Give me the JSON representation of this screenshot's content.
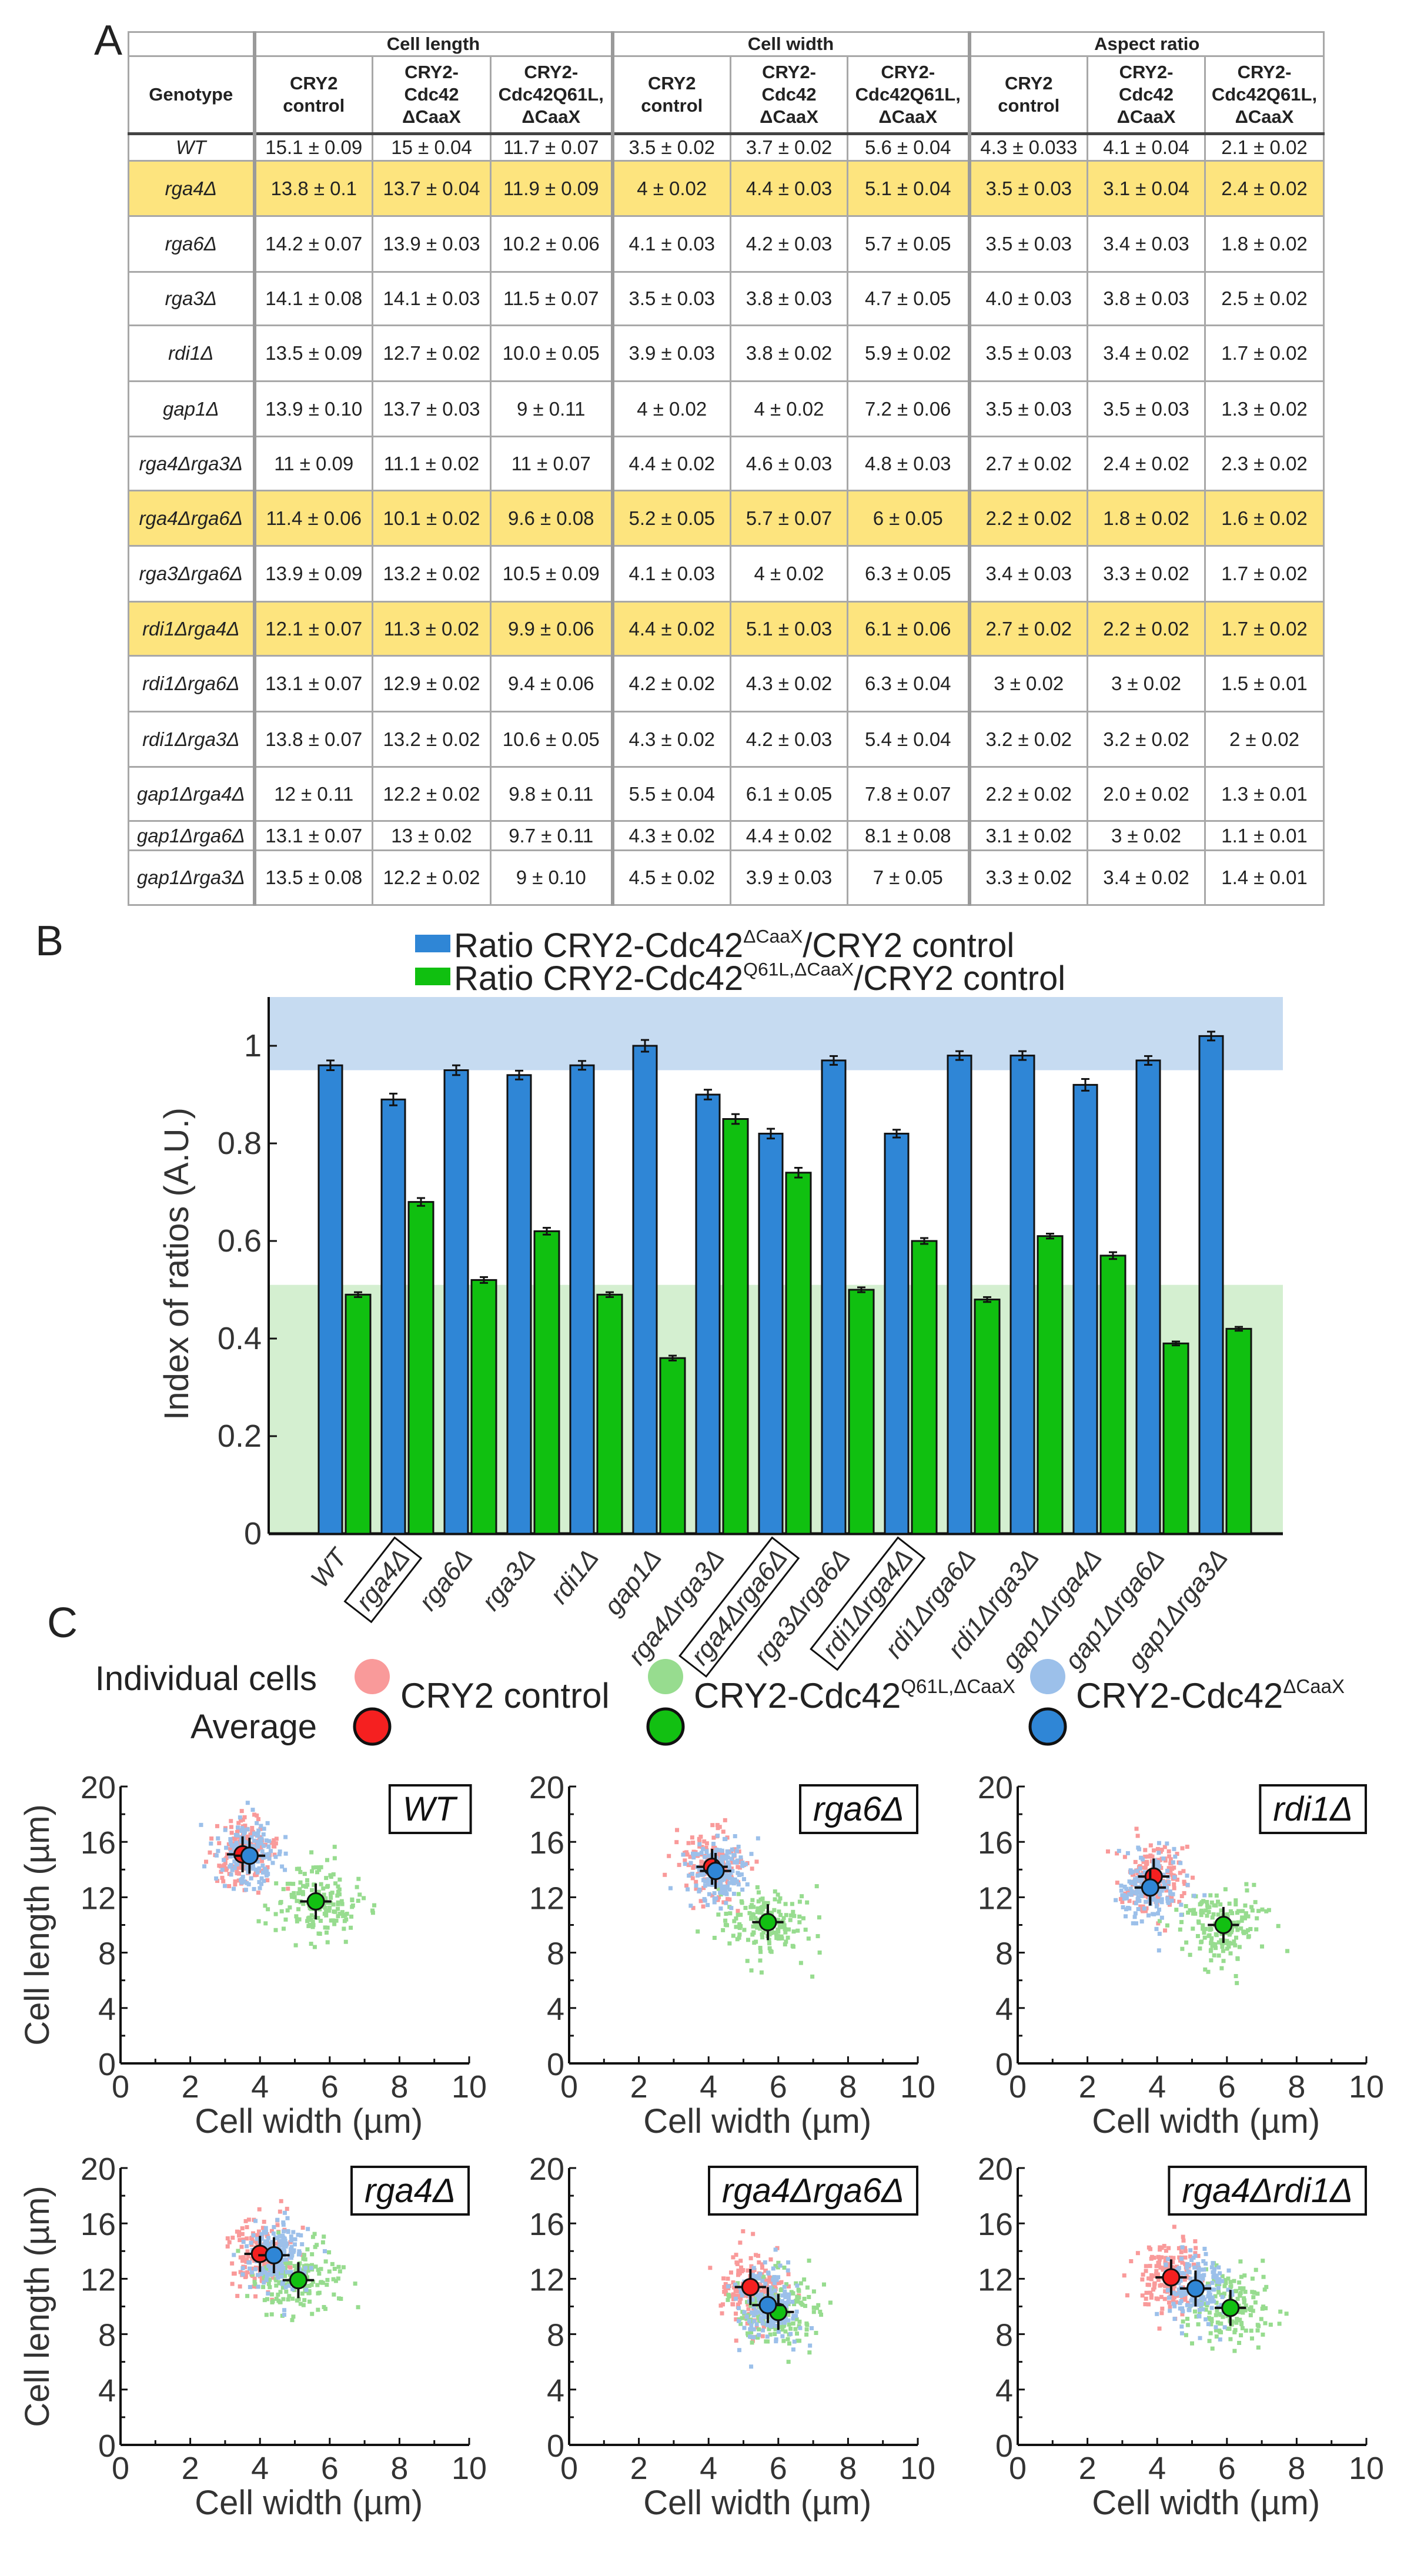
{
  "panels": {
    "a": "A",
    "b": "B",
    "c": "C"
  },
  "table": {
    "group_headers": [
      "Cell length",
      "Cell width",
      "Aspect ratio"
    ],
    "genotype_header": "Genotype",
    "sub_headers": [
      [
        "CRY2",
        "control",
        ""
      ],
      [
        "CRY2-",
        "Cdc42",
        "ΔCaaX"
      ],
      [
        "CRY2-",
        "Cdc42Q61L,",
        "ΔCaaX"
      ]
    ],
    "rows": [
      {
        "genotype": "WT",
        "highlight": false,
        "values": [
          "15.1 ± 0.09",
          "15 ± 0.04",
          "11.7 ± 0.07",
          "3.5 ± 0.02",
          "3.7 ± 0.02",
          "5.6 ± 0.04",
          "4.3 ± 0.033",
          "4.1 ± 0.04",
          "2.1 ± 0.02"
        ]
      },
      {
        "genotype": "rga4Δ",
        "highlight": true,
        "values": [
          "13.8 ± 0.1",
          "13.7 ± 0.04",
          "11.9 ± 0.09",
          "4 ± 0.02",
          "4.4 ± 0.03",
          "5.1 ± 0.04",
          "3.5 ± 0.03",
          "3.1 ± 0.04",
          "2.4 ± 0.02"
        ]
      },
      {
        "genotype": "rga6Δ",
        "highlight": false,
        "values": [
          "14.2 ± 0.07",
          "13.9 ± 0.03",
          "10.2 ± 0.06",
          "4.1 ± 0.03",
          "4.2 ± 0.03",
          "5.7 ± 0.05",
          "3.5 ± 0.03",
          "3.4 ± 0.03",
          "1.8 ± 0.02"
        ]
      },
      {
        "genotype": "rga3Δ",
        "highlight": false,
        "values": [
          "14.1 ± 0.08",
          "14.1 ± 0.03",
          "11.5 ± 0.07",
          "3.5 ± 0.03",
          "3.8 ± 0.03",
          "4.7 ± 0.05",
          "4.0 ± 0.03",
          "3.8 ± 0.03",
          "2.5 ± 0.02"
        ]
      },
      {
        "genotype": "rdi1Δ",
        "highlight": false,
        "values": [
          "13.5 ± 0.09",
          "12.7 ± 0.02",
          "10.0 ± 0.05",
          "3.9 ± 0.03",
          "3.8 ± 0.02",
          "5.9 ± 0.02",
          "3.5 ± 0.03",
          "3.4 ± 0.02",
          "1.7 ± 0.02"
        ]
      },
      {
        "genotype": "gap1Δ",
        "highlight": false,
        "values": [
          "13.9 ± 0.10",
          "13.7 ± 0.03",
          "9 ± 0.11",
          "4 ± 0.02",
          "4 ± 0.02",
          "7.2 ± 0.06",
          "3.5 ± 0.03",
          "3.5 ± 0.03",
          "1.3 ± 0.02"
        ]
      },
      {
        "genotype": "rga4Δrga3Δ",
        "highlight": false,
        "values": [
          "11 ± 0.09",
          "11.1 ± 0.02",
          "11 ± 0.07",
          "4.4 ± 0.02",
          "4.6 ± 0.03",
          "4.8 ± 0.03",
          "2.7 ± 0.02",
          "2.4 ± 0.02",
          "2.3 ± 0.02"
        ]
      },
      {
        "genotype": "rga4Δrga6Δ",
        "highlight": true,
        "values": [
          "11.4 ± 0.06",
          "10.1 ± 0.02",
          "9.6 ± 0.08",
          "5.2 ± 0.05",
          "5.7 ± 0.07",
          "6 ± 0.05",
          "2.2 ± 0.02",
          "1.8 ± 0.02",
          "1.6 ± 0.02"
        ]
      },
      {
        "genotype": "rga3Δrga6Δ",
        "highlight": false,
        "values": [
          "13.9 ± 0.09",
          "13.2 ± 0.02",
          "10.5 ± 0.09",
          "4.1 ± 0.03",
          "4 ± 0.02",
          "6.3 ± 0.05",
          "3.4 ± 0.03",
          "3.3 ± 0.02",
          "1.7 ± 0.02"
        ]
      },
      {
        "genotype": "rdi1Δrga4Δ",
        "highlight": true,
        "values": [
          "12.1 ± 0.07",
          "11.3 ± 0.02",
          "9.9 ± 0.06",
          "4.4 ± 0.02",
          "5.1 ± 0.03",
          "6.1 ± 0.06",
          "2.7 ± 0.02",
          "2.2 ± 0.02",
          "1.7 ± 0.02"
        ]
      },
      {
        "genotype": "rdi1Δrga6Δ",
        "highlight": false,
        "values": [
          "13.1 ± 0.07",
          "12.9 ± 0.02",
          "9.4 ± 0.06",
          "4.2 ± 0.02",
          "4.3 ± 0.02",
          "6.3 ± 0.04",
          "3 ± 0.02",
          "3 ± 0.02",
          "1.5 ± 0.01"
        ]
      },
      {
        "genotype": "rdi1Δrga3Δ",
        "highlight": false,
        "values": [
          "13.8 ± 0.07",
          "13.2 ± 0.02",
          "10.6 ± 0.05",
          "4.3 ± 0.02",
          "4.2 ± 0.03",
          "5.4 ± 0.04",
          "3.2 ± 0.02",
          "3.2 ± 0.02",
          "2 ± 0.02"
        ]
      },
      {
        "genotype": "gap1Δrga4Δ",
        "highlight": false,
        "values": [
          "12 ± 0.11",
          "12.2 ± 0.02",
          "9.8 ± 0.11",
          "5.5 ± 0.04",
          "6.1 ± 0.05",
          "7.8 ± 0.07",
          "2.2 ± 0.02",
          "2.0 ± 0.02",
          "1.3 ± 0.01"
        ]
      },
      {
        "genotype": "gap1Δrga6Δ",
        "highlight": false,
        "values": [
          "13.1 ± 0.07",
          "13 ± 0.02",
          "9.7 ± 0.11",
          "4.3 ± 0.02",
          "4.4 ± 0.02",
          "8.1 ± 0.08",
          "3.1 ± 0.02",
          "3 ± 0.02",
          "1.1 ± 0.01"
        ]
      },
      {
        "genotype": "gap1Δrga3Δ",
        "highlight": false,
        "values": [
          "13.5 ± 0.08",
          "12.2 ± 0.02",
          "9 ± 0.10",
          "4.5 ± 0.02",
          "3.9 ± 0.03",
          "7 ± 0.05",
          "3.3 ± 0.02",
          "3.4 ± 0.02",
          "1.4 ± 0.01"
        ]
      }
    ],
    "highlight_color": "#fde47e"
  },
  "chart_data": [
    {
      "type": "bar",
      "ylabel": "Index of ratios (A.U.)",
      "ylim": [
        0,
        1.1
      ],
      "yticks": [
        "0",
        "0.2",
        "0.4",
        "0.6",
        "0.8",
        "1"
      ],
      "legend": [
        {
          "pre": "Ratio CRY2-Cdc42",
          "sup": "ΔCaaX",
          "post": "/CRY2 control",
          "color": "#2f86d6"
        },
        {
          "pre": "Ratio CRY2-Cdc42",
          "sup": "Q61L,ΔCaaX",
          "post": "/CRY2 control",
          "color": "#10c010"
        }
      ],
      "legend_placement": "top",
      "bands": [
        {
          "from": 0.95,
          "to": 1.1,
          "color": "#c6dbf1"
        },
        {
          "from": 0,
          "to": 0.51,
          "color": "#d4efd0"
        }
      ],
      "categories": [
        "WT",
        "rga4Δ",
        "rga6Δ",
        "rga3Δ",
        "rdi1Δ",
        "gap1Δ",
        "rga4Δrga3Δ",
        "rga4Δrga6Δ",
        "rga3Δrga6Δ",
        "rdi1Δrga4Δ",
        "rdi1Δrga6Δ",
        "rdi1Δrga3Δ",
        "gap1Δrga4Δ",
        "gap1Δrga6Δ",
        "gap1Δrga3Δ"
      ],
      "boxed_categories": [
        "rga4Δ",
        "rga4Δrga6Δ",
        "rdi1Δrga4Δ"
      ],
      "series": [
        {
          "name": "Ratio CRY2-Cdc42ΔCaaX/CRY2 control",
          "color": "#2f86d6",
          "values": [
            0.96,
            0.89,
            0.95,
            0.94,
            0.96,
            1.0,
            0.9,
            0.82,
            0.97,
            0.82,
            0.98,
            0.98,
            0.92,
            0.97,
            1.02
          ],
          "errors": [
            0.01,
            0.012,
            0.01,
            0.009,
            0.009,
            0.012,
            0.01,
            0.01,
            0.009,
            0.008,
            0.009,
            0.009,
            0.012,
            0.009,
            0.009
          ]
        },
        {
          "name": "Ratio CRY2-Cdc42Q61L,ΔCaaX/CRY2 control",
          "color": "#10c010",
          "values": [
            0.49,
            0.68,
            0.52,
            0.62,
            0.49,
            0.36,
            0.85,
            0.74,
            0.5,
            0.6,
            0.48,
            0.61,
            0.57,
            0.39,
            0.42
          ],
          "errors": [
            0.005,
            0.008,
            0.006,
            0.007,
            0.005,
            0.005,
            0.01,
            0.01,
            0.005,
            0.006,
            0.005,
            0.005,
            0.007,
            0.004,
            0.004
          ]
        }
      ]
    },
    {
      "type": "scatter",
      "legend": {
        "individual_label": "Individual cells",
        "average_label": "Average",
        "entries": [
          {
            "pre": "CRY2 control",
            "sup": "",
            "dot": "#f99a9a",
            "avg": "#f52020"
          },
          {
            "pre": "CRY2-Cdc42",
            "sup": "Q61L,ΔCaaX",
            "dot": "#97dc8f",
            "avg": "#12c012"
          },
          {
            "pre": "CRY2-Cdc42",
            "sup": "ΔCaaX",
            "dot": "#9cc0ea",
            "avg": "#2f86d6"
          }
        ]
      },
      "xlabel": "Cell width (µm)",
      "ylabel": "Cell length (µm)",
      "xlim": [
        0,
        10
      ],
      "ylim": [
        0,
        20
      ],
      "xticks": [
        "0",
        "2",
        "4",
        "6",
        "8",
        "10"
      ],
      "yticks": [
        "0",
        "4",
        "8",
        "12",
        "16",
        "20"
      ],
      "panels": [
        {
          "title": "WT",
          "control": [
            3.5,
            15.1
          ],
          "caax": [
            3.7,
            15.0
          ],
          "q61l": [
            5.6,
            11.7
          ]
        },
        {
          "title": "rga6Δ",
          "control": [
            4.1,
            14.2
          ],
          "caax": [
            4.2,
            13.9
          ],
          "q61l": [
            5.7,
            10.2
          ]
        },
        {
          "title": "rdi1Δ",
          "control": [
            3.9,
            13.5
          ],
          "caax": [
            3.8,
            12.7
          ],
          "q61l": [
            5.9,
            10.0
          ]
        },
        {
          "title": "rga4Δ",
          "control": [
            4.0,
            13.8
          ],
          "caax": [
            4.4,
            13.7
          ],
          "q61l": [
            5.1,
            11.9
          ]
        },
        {
          "title": "rga4Δrga6Δ",
          "control": [
            5.2,
            11.4
          ],
          "caax": [
            5.7,
            10.1
          ],
          "q61l": [
            6.0,
            9.6
          ]
        },
        {
          "title": "rga4Δrdi1Δ",
          "control": [
            4.4,
            12.1
          ],
          "caax": [
            5.1,
            11.3
          ],
          "q61l": [
            6.1,
            9.9
          ]
        }
      ],
      "sd": {
        "width": 0.45,
        "length": 1.3
      }
    }
  ]
}
